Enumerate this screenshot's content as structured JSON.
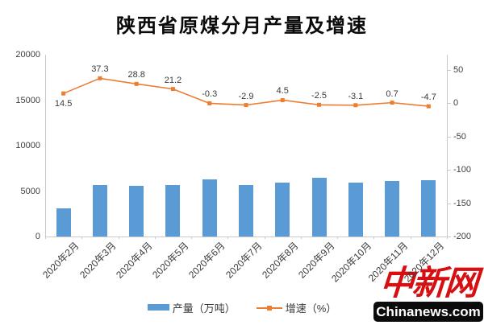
{
  "chart_data": {
    "type": "combo",
    "title": "陕西省原煤分月产量及增速",
    "categories": [
      "2020年2月",
      "2020年3月",
      "2020年4月",
      "2020年5月",
      "2020年6月",
      "2020年7月",
      "2020年8月",
      "2020年9月",
      "2020年10月",
      "2020年11月",
      "2020年12月"
    ],
    "series": [
      {
        "name": "产量（万吨）",
        "chart_type": "bar",
        "axis": "left",
        "color": "#5B9BD5",
        "values": [
          3100,
          5700,
          5580,
          5620,
          6250,
          5700,
          5970,
          6450,
          5960,
          6110,
          6180
        ],
        "note": "bar heights estimated from axis gridlines; no data labels shown"
      },
      {
        "name": "增速（%）",
        "chart_type": "line",
        "axis": "right",
        "color": "#ED7D31",
        "values": [
          14.5,
          37.3,
          28.8,
          21.2,
          -0.3,
          -2.9,
          4.5,
          -2.5,
          -3.1,
          0.7,
          -4.7
        ],
        "point_labels": [
          "14.5",
          "37.3",
          "28.8",
          "21.2",
          "-0.3",
          "-2.9",
          "4.5",
          "-2.5",
          "-3.1",
          "0.7",
          "-4.7"
        ]
      }
    ],
    "left_axis": {
      "label": "",
      "ticks": [
        20000,
        15000,
        10000,
        5000,
        0
      ],
      "min": 0,
      "max": 20000
    },
    "right_axis": {
      "label": "",
      "ticks": [
        50,
        0,
        -50,
        -100,
        -150,
        -200
      ],
      "min": -200,
      "max": 71
    },
    "grid": false,
    "legend_position": "bottom"
  },
  "legend": {
    "items": [
      {
        "label": "产量（万吨）",
        "swatch": "bar",
        "color": "#5B9BD5"
      },
      {
        "label": "增速（%）",
        "swatch": "line",
        "color": "#ED7D31"
      }
    ]
  },
  "watermark": {
    "logo_text": "中新网",
    "site_text": "Chinanews.com",
    "logo_color": "#d60f12",
    "bar_bg": "#0b0b0b",
    "bar_text_color": "#ffffff"
  },
  "colors": {
    "bar": "#5B9BD5",
    "line": "#ED7D31",
    "axis_line": "#c9c9c9",
    "axis_text": "#3f3f3f"
  }
}
